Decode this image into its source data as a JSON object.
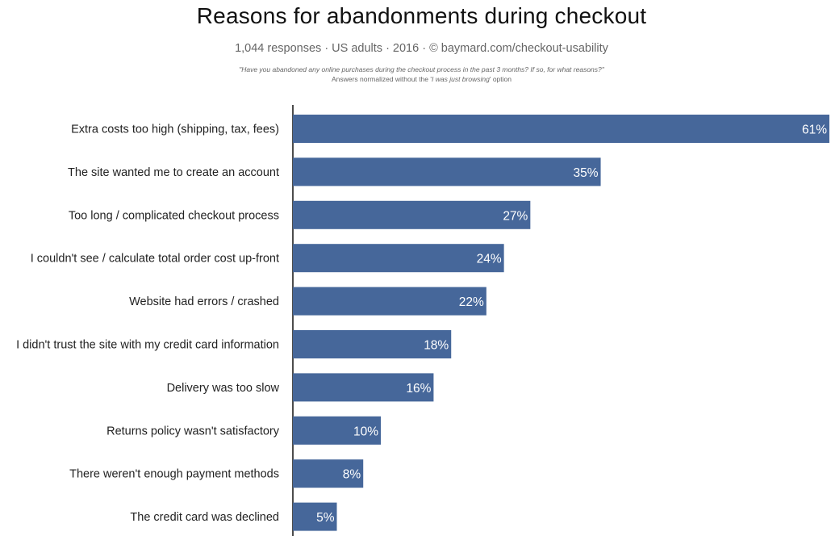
{
  "chart_data": {
    "type": "bar",
    "orientation": "horizontal",
    "title": "Reasons for abandonments during checkout",
    "subtitle": "1,044 responses  ·  US adults  ·  2016  ·  ©  baymard.com/checkout-usability",
    "question": "\"Have you abandoned any online purchases during the checkout process in the past 3 months? If so, for what reasons?\"",
    "note_prefix": "Answers normalized without the '",
    "note_italic": "I was just browsing",
    "note_suffix": "' option",
    "categories": [
      "Extra costs too high (shipping, tax, fees)",
      "The site wanted me to create an account",
      "Too long / complicated checkout process",
      "I couldn't see / calculate total order cost up-front",
      "Website had errors / crashed",
      "I didn't trust the site with my credit card information",
      "Delivery was too slow",
      "Returns policy wasn't satisfactory",
      "There weren't enough payment methods",
      "The credit card was declined"
    ],
    "values": [
      61,
      35,
      27,
      24,
      22,
      18,
      16,
      10,
      8,
      5
    ],
    "value_labels": [
      "61%",
      "35%",
      "27%",
      "24%",
      "22%",
      "18%",
      "16%",
      "10%",
      "8%",
      "5%"
    ],
    "unit": "%",
    "bar_color": "#46679a",
    "grid": false,
    "legend": "none"
  }
}
